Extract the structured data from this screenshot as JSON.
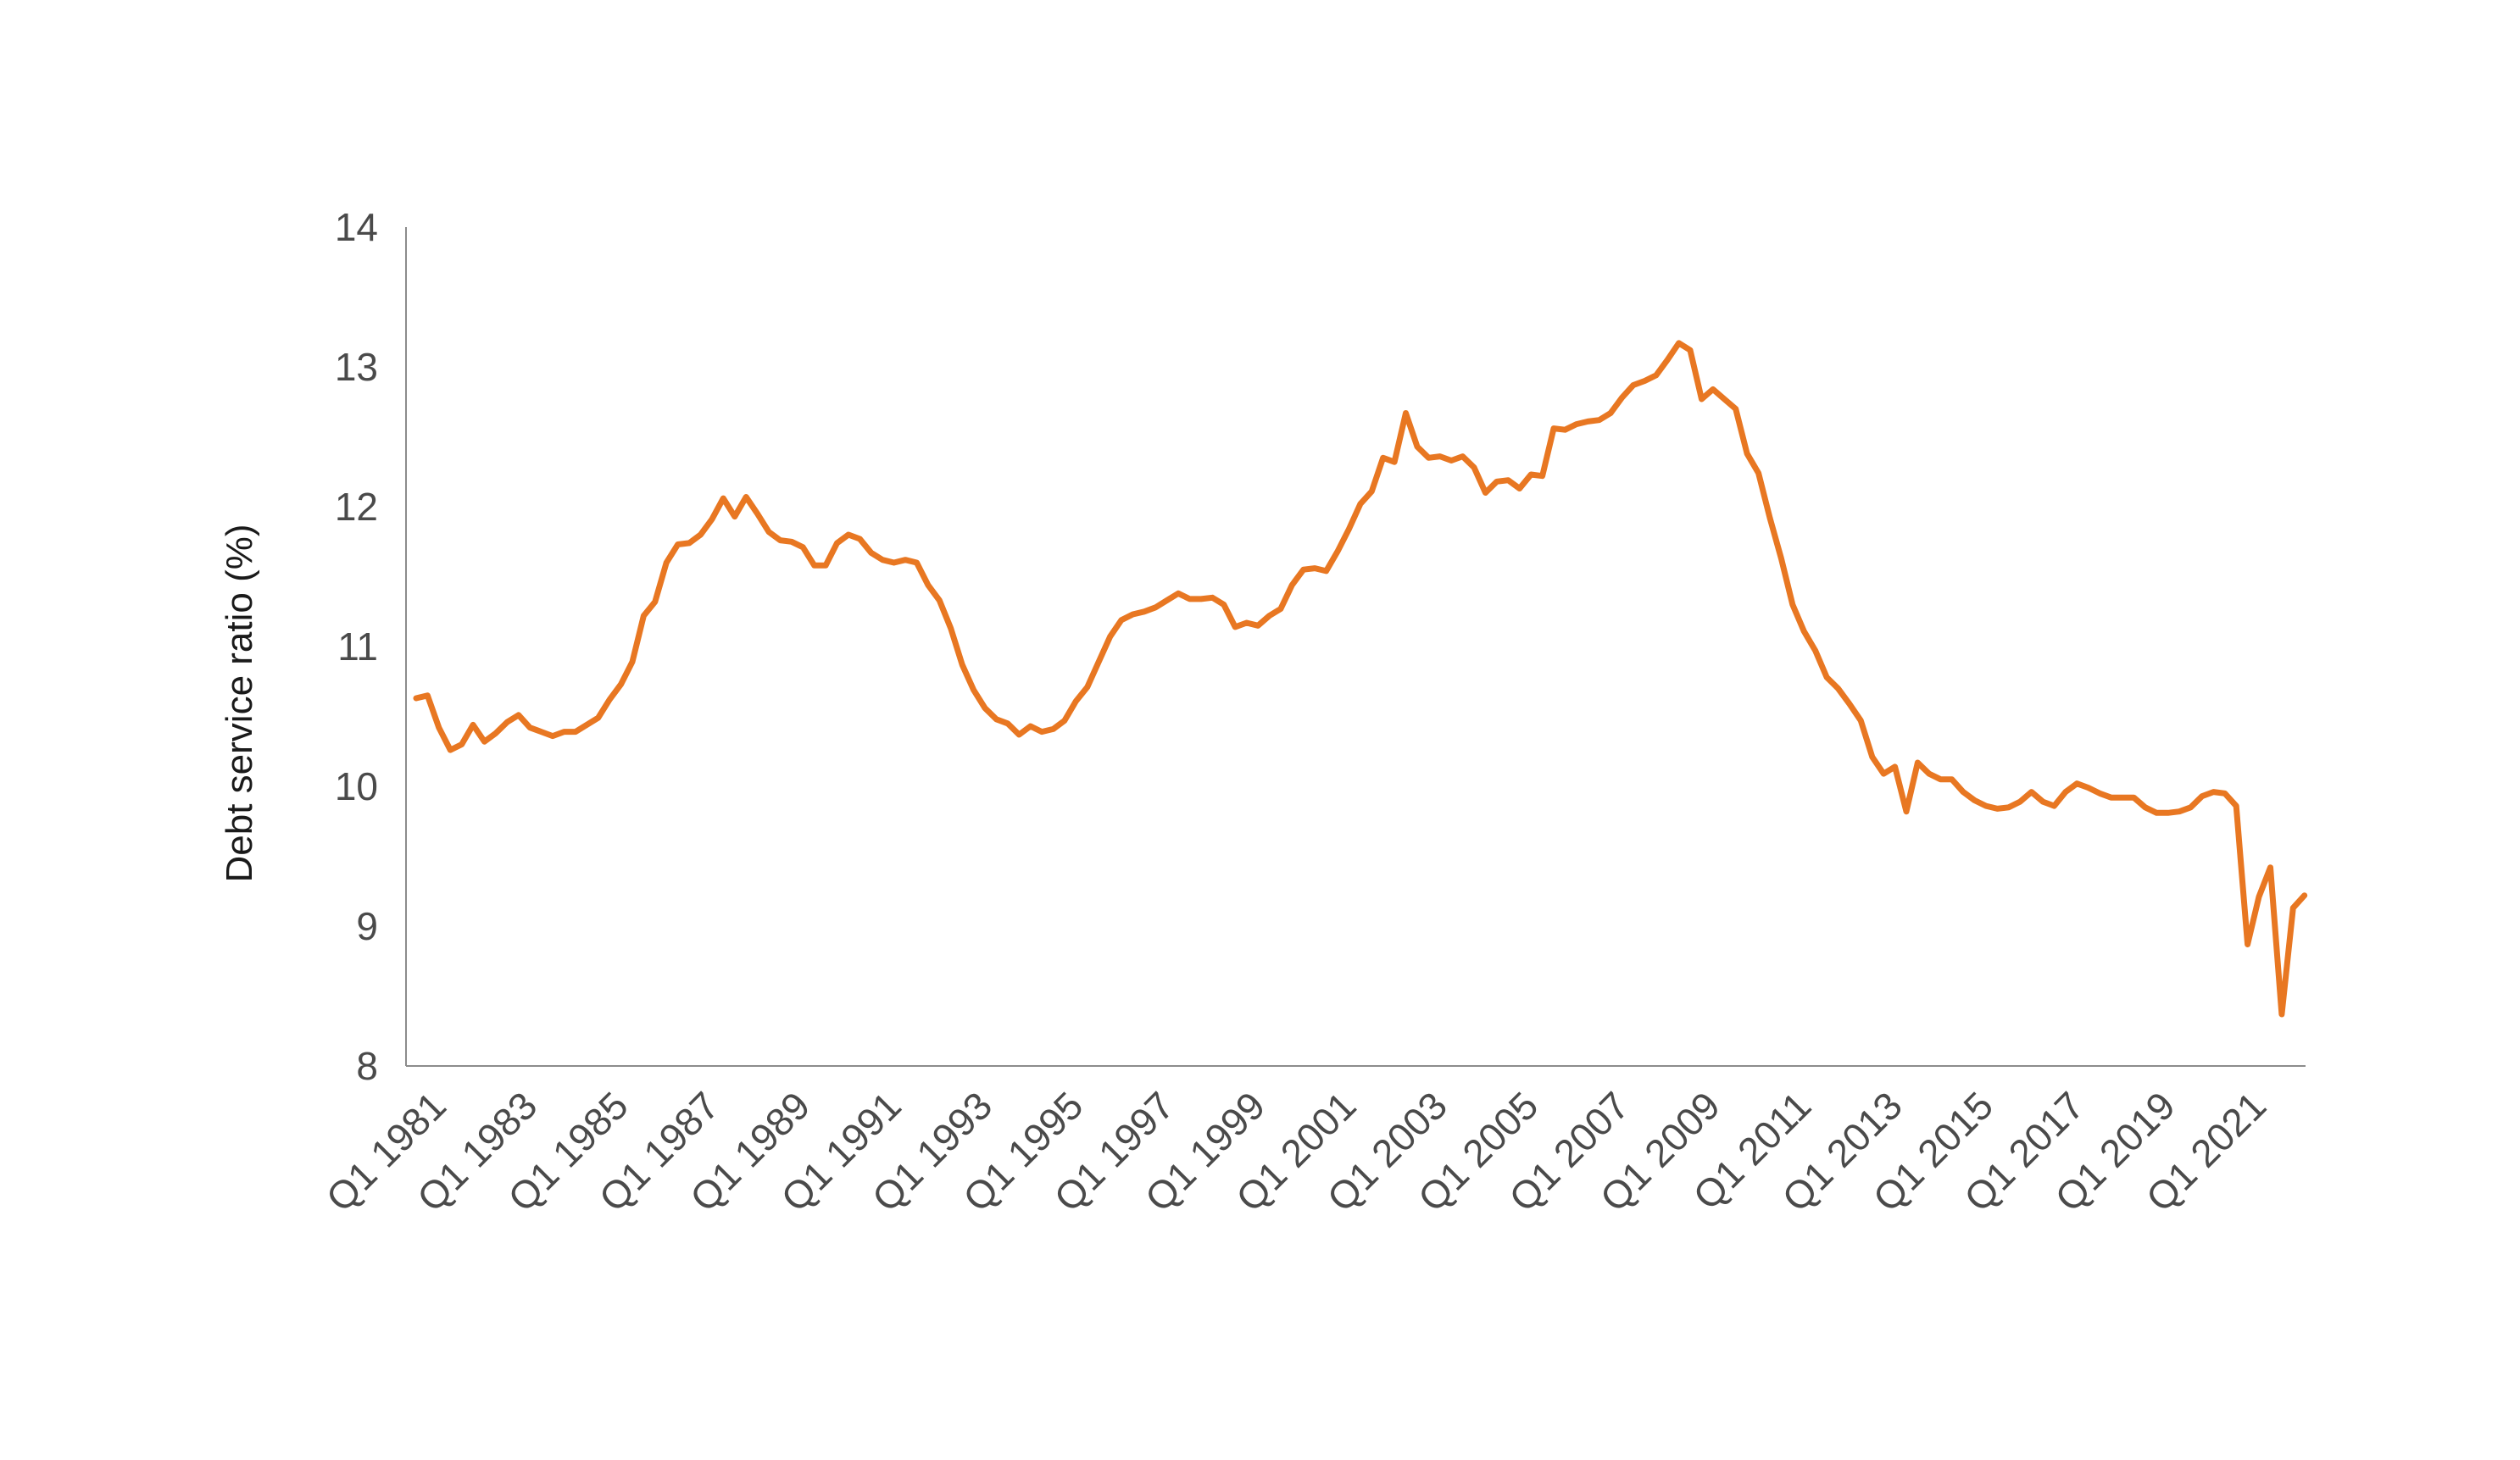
{
  "chart_data": {
    "type": "line",
    "title": "",
    "xlabel": "",
    "ylabel": "Debt service ratio (%)",
    "ylim": [
      8,
      14
    ],
    "yticks": [
      8,
      9,
      10,
      11,
      12,
      13,
      14
    ],
    "grid": false,
    "legend": "none",
    "line_color": "#E87722",
    "axis_color": "#8C8C8C",
    "x_start": "Q1 1981",
    "x_end": "Q4 2021",
    "x_tick_labels": [
      "Q1 1981",
      "Q1 1983",
      "Q1 1985",
      "Q1 1987",
      "Q1 1989",
      "Q1 1991",
      "Q1 1993",
      "Q1 1995",
      "Q1 1997",
      "Q1 1999",
      "Q1 2001",
      "Q1 2003",
      "Q1 2005",
      "Q1 2007",
      "Q1 2009",
      "Q1 2011",
      "Q1 2013",
      "Q1 2015",
      "Q1 2017",
      "Q1 2019",
      "Q1 2021"
    ],
    "series": [
      {
        "values": [
          10.63,
          10.65,
          10.42,
          10.26,
          10.3,
          10.44,
          10.32,
          10.38,
          10.46,
          10.51,
          10.42,
          10.39,
          10.36,
          10.39,
          10.39,
          10.44,
          10.49,
          10.62,
          10.73,
          10.89,
          11.22,
          11.32,
          11.6,
          11.73,
          11.74,
          11.8,
          11.91,
          12.06,
          11.93,
          12.07,
          11.95,
          11.82,
          11.76,
          11.75,
          11.71,
          11.58,
          11.58,
          11.74,
          11.8,
          11.77,
          11.67,
          11.62,
          11.6,
          11.62,
          11.6,
          11.44,
          11.33,
          11.13,
          10.87,
          10.69,
          10.56,
          10.48,
          10.45,
          10.37,
          10.43,
          10.39,
          10.41,
          10.47,
          10.61,
          10.71,
          10.89,
          11.07,
          11.19,
          11.23,
          11.25,
          11.28,
          11.33,
          11.38,
          11.34,
          11.34,
          11.35,
          11.3,
          11.14,
          11.17,
          11.15,
          11.22,
          11.27,
          11.44,
          11.55,
          11.56,
          11.54,
          11.68,
          11.84,
          12.02,
          12.11,
          12.35,
          12.32,
          12.67,
          12.43,
          12.35,
          12.36,
          12.33,
          12.36,
          12.28,
          12.1,
          12.18,
          12.19,
          12.13,
          12.23,
          12.22,
          12.56,
          12.55,
          12.59,
          12.61,
          12.62,
          12.67,
          12.78,
          12.87,
          12.9,
          12.94,
          13.05,
          13.17,
          13.12,
          12.77,
          12.84,
          12.77,
          12.7,
          12.38,
          12.24,
          11.92,
          11.63,
          11.3,
          11.11,
          10.97,
          10.78,
          10.7,
          10.59,
          10.47,
          10.21,
          10.09,
          10.14,
          9.82,
          10.17,
          10.09,
          10.05,
          10.05,
          9.96,
          9.9,
          9.86,
          9.84,
          9.85,
          9.89,
          9.96,
          9.89,
          9.86,
          9.96,
          10.02,
          9.99,
          9.95,
          9.92,
          9.92,
          9.92,
          9.85,
          9.81,
          9.81,
          9.82,
          9.85,
          9.93,
          9.96,
          9.95,
          9.86,
          8.87,
          9.21,
          9.42,
          8.37,
          9.13,
          9.22
        ]
      }
    ]
  }
}
